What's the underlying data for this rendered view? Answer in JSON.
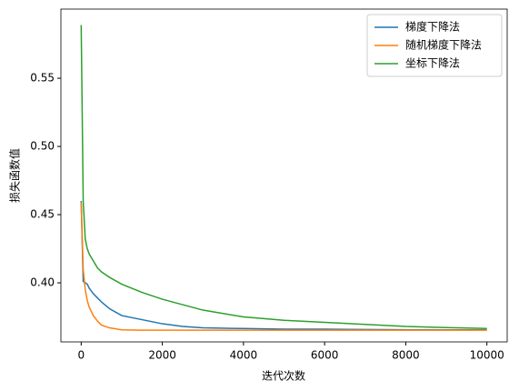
{
  "chart_data": {
    "type": "line",
    "xlabel": "迭代次数",
    "ylabel": "损失函数值",
    "x": [
      0,
      50,
      100,
      150,
      200,
      300,
      400,
      500,
      700,
      1000,
      1500,
      2000,
      2500,
      3000,
      4000,
      5000,
      6000,
      7000,
      8000,
      9000,
      10000
    ],
    "series": [
      {
        "name": "梯度下降法",
        "color": "#1f77b4",
        "values": [
          0.46,
          0.401,
          0.4,
          0.399,
          0.396,
          0.392,
          0.389,
          0.386,
          0.381,
          0.376,
          0.373,
          0.37,
          0.368,
          0.367,
          0.3665,
          0.366,
          0.366,
          0.3658,
          0.3656,
          0.3655,
          0.3655
        ]
      },
      {
        "name": "随机梯度下降法",
        "color": "#ff7f0e",
        "values": [
          0.459,
          0.41,
          0.395,
          0.387,
          0.382,
          0.376,
          0.372,
          0.369,
          0.367,
          0.3655,
          0.3653,
          0.3653,
          0.3653,
          0.3653,
          0.3653,
          0.3653,
          0.3653,
          0.3653,
          0.3653,
          0.3653,
          0.3653
        ]
      },
      {
        "name": "坐标下降法",
        "color": "#2ca02c",
        "values": [
          0.589,
          0.46,
          0.432,
          0.425,
          0.421,
          0.416,
          0.411,
          0.408,
          0.404,
          0.399,
          0.393,
          0.388,
          0.384,
          0.38,
          0.375,
          0.3725,
          0.371,
          0.3695,
          0.368,
          0.3672,
          0.3665
        ]
      }
    ],
    "xlim": [
      -500,
      10500
    ],
    "xticks": [
      0,
      2000,
      4000,
      6000,
      8000,
      10000
    ],
    "ylim": [
      0.3567,
      0.6007
    ],
    "yticks": [
      {
        "value": 0.4,
        "label": "0.40"
      },
      0.45,
      {
        "value": 0.5,
        "label": "0.50"
      },
      0.55
    ],
    "grid": false,
    "legend": "upper right"
  }
}
